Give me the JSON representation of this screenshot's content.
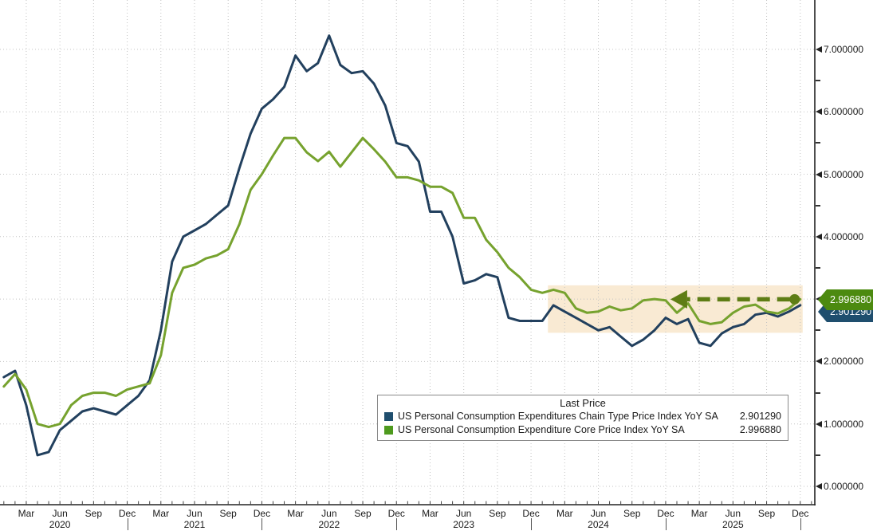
{
  "chart_data": {
    "type": "line",
    "title": "",
    "x_unit": "month",
    "x": [
      "2020-01",
      "2020-02",
      "2020-03",
      "2020-04",
      "2020-05",
      "2020-06",
      "2020-07",
      "2020-08",
      "2020-09",
      "2020-10",
      "2020-11",
      "2020-12",
      "2021-01",
      "2021-02",
      "2021-03",
      "2021-04",
      "2021-05",
      "2021-06",
      "2021-07",
      "2021-08",
      "2021-09",
      "2021-10",
      "2021-11",
      "2021-12",
      "2022-01",
      "2022-02",
      "2022-03",
      "2022-04",
      "2022-05",
      "2022-06",
      "2022-07",
      "2022-08",
      "2022-09",
      "2022-10",
      "2022-11",
      "2022-12",
      "2023-01",
      "2023-02",
      "2023-03",
      "2023-04",
      "2023-05",
      "2023-06",
      "2023-07",
      "2023-08",
      "2023-09",
      "2023-10",
      "2023-11",
      "2023-12",
      "2024-01",
      "2024-02",
      "2024-03",
      "2024-04",
      "2024-05",
      "2024-06",
      "2024-07",
      "2024-08",
      "2024-09",
      "2024-10",
      "2024-11",
      "2024-12",
      "2025-01",
      "2025-02",
      "2025-03",
      "2025-04",
      "2025-05",
      "2025-06",
      "2025-07",
      "2025-08",
      "2025-09",
      "2025-10",
      "2025-11",
      "2025-12"
    ],
    "series": [
      {
        "name": "US Personal Consumption Expenditures Chain Type Price Index YoY SA",
        "color": "#22405e",
        "last_price": "2.901290",
        "values": [
          1.75,
          1.85,
          1.3,
          0.5,
          0.55,
          0.9,
          1.05,
          1.2,
          1.25,
          1.2,
          1.15,
          1.3,
          1.45,
          1.7,
          2.5,
          3.6,
          4.0,
          4.1,
          4.2,
          4.35,
          4.5,
          5.1,
          5.65,
          6.05,
          6.2,
          6.4,
          6.9,
          6.65,
          6.78,
          7.22,
          6.75,
          6.62,
          6.65,
          6.45,
          6.1,
          5.5,
          5.45,
          5.2,
          4.4,
          4.4,
          4.0,
          3.25,
          3.3,
          3.4,
          3.35,
          2.7,
          2.65,
          2.65,
          2.65,
          2.9,
          2.8,
          2.7,
          2.6,
          2.5,
          2.55,
          2.4,
          2.25,
          2.35,
          2.5,
          2.7,
          2.6,
          2.68,
          2.3,
          2.25,
          2.45,
          2.55,
          2.6,
          2.75,
          2.78,
          2.72,
          2.8,
          2.90129
        ]
      },
      {
        "name": "US Personal Consumption Expenditure Core Price Index YoY SA",
        "color": "#76a22e",
        "last_price": "2.996880",
        "values": [
          1.6,
          1.8,
          1.55,
          1.0,
          0.95,
          1.0,
          1.3,
          1.45,
          1.5,
          1.5,
          1.45,
          1.55,
          1.6,
          1.65,
          2.1,
          3.1,
          3.5,
          3.55,
          3.65,
          3.7,
          3.8,
          4.2,
          4.75,
          5.0,
          5.3,
          5.58,
          5.58,
          5.35,
          5.21,
          5.36,
          5.12,
          5.35,
          5.58,
          5.4,
          5.2,
          4.95,
          4.95,
          4.9,
          4.8,
          4.8,
          4.7,
          4.3,
          4.3,
          3.95,
          3.75,
          3.5,
          3.35,
          3.15,
          3.1,
          3.15,
          3.1,
          2.85,
          2.78,
          2.8,
          2.88,
          2.82,
          2.85,
          2.98,
          3.0,
          2.98,
          2.78,
          2.93,
          2.65,
          2.6,
          2.63,
          2.78,
          2.88,
          2.91,
          2.8,
          2.77,
          2.85,
          2.99688
        ]
      }
    ],
    "ylim": [
      0,
      7.8
    ],
    "y_gridline_step": 1.0,
    "x_gridline_step_months": 3,
    "grid_style": "dotted",
    "legend_position": "bottom-center-box"
  },
  "y_axis": {
    "labels": [
      "0.000000",
      "1.000000",
      "2.000000",
      "3.000000",
      "4.000000",
      "5.000000",
      "6.000000",
      "7.000000"
    ]
  },
  "x_axis": {
    "quarter_months": [
      "Mar",
      "Jun",
      "Sep",
      "Dec"
    ],
    "years": [
      "2020",
      "2021",
      "2022",
      "2023",
      "2024",
      "2025"
    ]
  },
  "legend": {
    "title": "Last Price",
    "rows": [
      {
        "label": "US Personal Consumption Expenditures Chain Type Price Index YoY SA",
        "value": "2.901290",
        "swatch_color": "#1f4e6e"
      },
      {
        "label": "US Personal Consumption Expenditure Core Price Index YoY SA",
        "value": "2.996880",
        "swatch_color": "#4e9a1e"
      }
    ]
  },
  "price_tags": [
    {
      "text": "2.996880",
      "bg": "#4c8a10"
    },
    {
      "text": "2.901290",
      "bg": "#1f4e6e"
    }
  ],
  "annotations": {
    "highlight_band": {
      "start_month": "2024-02",
      "end_month": "2025-12",
      "top_value": 3.22,
      "bottom_value": 2.46,
      "color": "#f9ead3"
    },
    "dashed_arrow": {
      "at_value": 2.99688,
      "tail_month": "2025-11",
      "tip_month": "2024-12",
      "direction": "left",
      "color": "#5e7d15"
    }
  },
  "style_colors": {
    "grid": "#c3c3c3",
    "axis": "#222222",
    "background": "#ffffff"
  }
}
